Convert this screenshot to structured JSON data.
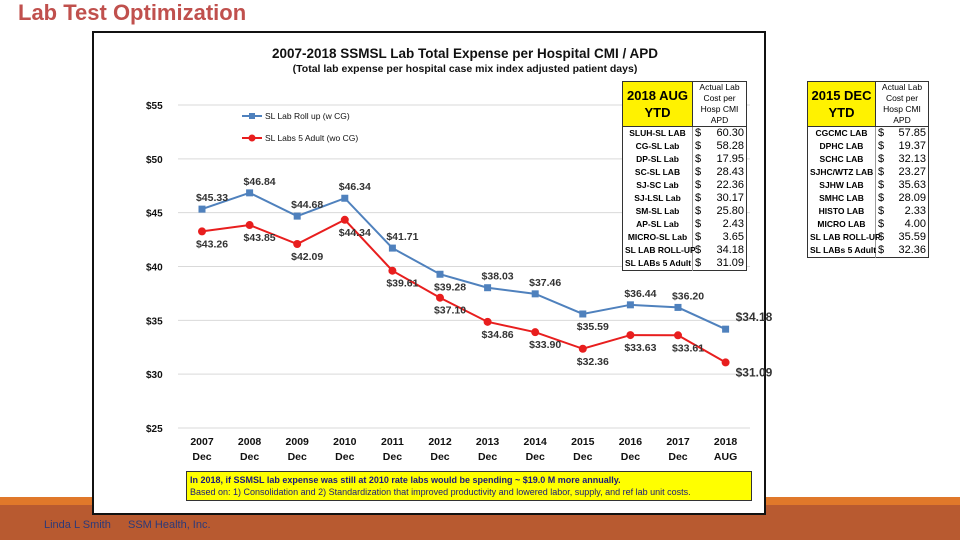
{
  "slide_title": "Lab Test Optimization",
  "footer": {
    "author": "Linda L Smith",
    "org": "SSM Health, Inc."
  },
  "chart_data": {
    "type": "line",
    "title": "2007-2018 SSMSL Lab Total Expense per Hospital CMI / APD",
    "subtitle": "(Total lab expense per hospital case mix index adjusted patient days)",
    "categories": [
      [
        "2007",
        "Dec"
      ],
      [
        "2008",
        "Dec"
      ],
      [
        "2009",
        "Dec"
      ],
      [
        "2010",
        "Dec"
      ],
      [
        "2011",
        "Dec"
      ],
      [
        "2012",
        "Dec"
      ],
      [
        "2013",
        "Dec"
      ],
      [
        "2014",
        "Dec"
      ],
      [
        "2015",
        "Dec"
      ],
      [
        "2016",
        "Dec"
      ],
      [
        "2017",
        "Dec"
      ],
      [
        "2018",
        "AUG"
      ]
    ],
    "yticks": [
      "$55",
      "$50",
      "$45",
      "$40",
      "$35",
      "$30",
      "$25"
    ],
    "ylim": [
      25,
      55
    ],
    "grid": true,
    "legend_position": "top-left",
    "series": [
      {
        "name": "SL Lab Roll up (w CG)",
        "color": "#4f81bd",
        "marker": "square",
        "values": [
          45.33,
          46.84,
          44.68,
          46.34,
          41.71,
          39.28,
          38.03,
          37.46,
          35.59,
          36.44,
          36.2,
          34.18
        ]
      },
      {
        "name": "SL Labs 5 Adult (wo CG)",
        "color": "#e81e1e",
        "marker": "circle",
        "values": [
          43.26,
          43.85,
          42.09,
          44.34,
          39.61,
          37.1,
          34.86,
          33.9,
          32.36,
          33.63,
          33.61,
          31.09
        ]
      }
    ]
  },
  "table_2018": {
    "header": "2018 AUG YTD",
    "col": "Actual Lab Cost per Hosp CMI APD",
    "rows": [
      [
        "SLUH-SL LAB",
        "$",
        "60.30"
      ],
      [
        "CG-SL Lab",
        "$",
        "58.28"
      ],
      [
        "DP-SL Lab",
        "$",
        "17.95"
      ],
      [
        "SC-SL LAB",
        "$",
        "28.43"
      ],
      [
        "SJ-SC Lab",
        "$",
        "22.36"
      ],
      [
        "SJ-LSL Lab",
        "$",
        "30.17"
      ],
      [
        "SM-SL Lab",
        "$",
        "25.80"
      ],
      [
        "AP-SL Lab",
        "$",
        "2.43"
      ],
      [
        "MICRO-SL Lab",
        "$",
        "3.65"
      ],
      [
        "SL LAB ROLL-UP",
        "$",
        "34.18"
      ],
      [
        "SL LABs 5 Adult",
        "$",
        "31.09"
      ]
    ]
  },
  "table_2015": {
    "header": "2015 DEC YTD",
    "col": "Actual Lab Cost per Hosp CMI APD",
    "rows": [
      [
        "CGCMC LAB",
        "$",
        "57.85"
      ],
      [
        "DPHC LAB",
        "$",
        "19.37"
      ],
      [
        "SCHC LAB",
        "$",
        "32.13"
      ],
      [
        "SJHC/WTZ LAB",
        "$",
        "23.27"
      ],
      [
        "SJHW LAB",
        "$",
        "35.63"
      ],
      [
        "SMHC LAB",
        "$",
        "28.09"
      ],
      [
        "HISTO LAB",
        "$",
        "2.33"
      ],
      [
        "MICRO LAB",
        "$",
        "4.00"
      ],
      [
        "SL LAB ROLL-UP",
        "$",
        "35.59"
      ],
      [
        "SL LABs 5 Adult",
        "$",
        "32.36"
      ]
    ]
  },
  "note": {
    "line1": "In 2018, if SSMSL lab expense was still at 2010 rate     labs would be spending ~ $19.0 M more annually.",
    "line2": "Based on:  1) Consolidation  and 2) Standardization that improved productivity and lowered labor, supply, and ref lab unit costs."
  }
}
